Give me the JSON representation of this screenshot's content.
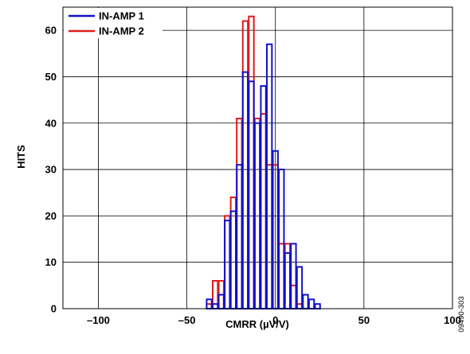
{
  "chart_data": {
    "type": "bar",
    "xlabel": "CMRR (µV/V)",
    "ylabel": "HITS",
    "xlim": [
      -120,
      100
    ],
    "ylim": [
      0,
      65
    ],
    "x_ticks": [
      "–100",
      "–50",
      "0",
      "50",
      "100"
    ],
    "y_ticks": [
      "0",
      "10",
      "20",
      "30",
      "40",
      "50",
      "60"
    ],
    "bin_width": 3.4,
    "grid": true,
    "legend_position": "top-left",
    "series": [
      {
        "name": "IN-AMP 1",
        "color": "#1111cc",
        "bin_centers": [
          -37.4,
          -34,
          -30.6,
          -27.2,
          -23.8,
          -20.4,
          -17,
          -13.6,
          -10.2,
          -6.8,
          -3.4,
          0,
          3.4,
          6.8,
          10.2,
          13.6,
          17,
          20.4,
          23.8,
          27.2,
          30.6
        ],
        "values": [
          2,
          1,
          3,
          19,
          21,
          31,
          51,
          49,
          40,
          48,
          57,
          34,
          30,
          12,
          14,
          9,
          3,
          2,
          1,
          0,
          0
        ]
      },
      {
        "name": "IN-AMP 2",
        "color": "#e01b1b",
        "bin_centers": [
          -37.4,
          -34,
          -30.6,
          -27.2,
          -23.8,
          -20.4,
          -17,
          -13.6,
          -10.2,
          -6.8,
          -3.4,
          0,
          3.4,
          6.8,
          10.2,
          13.6,
          17,
          20.4,
          23.8,
          27.2,
          30.6
        ],
        "values": [
          1,
          6,
          6,
          20,
          24,
          41,
          62,
          63,
          41,
          42,
          31,
          31,
          14,
          14,
          5,
          1,
          0,
          0,
          0,
          0,
          0
        ]
      }
    ]
  },
  "figure_id": "09490-303"
}
